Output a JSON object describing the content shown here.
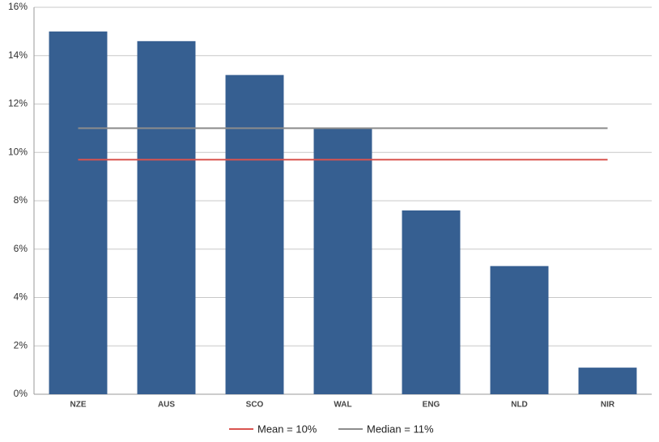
{
  "chart_data": {
    "type": "bar",
    "categories": [
      "NZE",
      "AUS",
      "SCO",
      "WAL",
      "ENG",
      "NLD",
      "NIR"
    ],
    "values": [
      15,
      14.6,
      13.2,
      11,
      7.6,
      5.3,
      1.1
    ],
    "color": "#365f91",
    "ylim": [
      0,
      16
    ],
    "yticks": [
      {
        "value": 0,
        "label": "0%"
      },
      {
        "value": 2,
        "label": "2%"
      },
      {
        "value": 4,
        "label": "4%"
      },
      {
        "value": 6,
        "label": "6%"
      },
      {
        "value": 8,
        "label": "8%"
      },
      {
        "value": 10,
        "label": "10%"
      },
      {
        "value": 12,
        "label": "12%"
      },
      {
        "value": 14,
        "label": "14%"
      },
      {
        "value": 16,
        "label": "16%"
      }
    ],
    "grid": true,
    "reference_lines": [
      {
        "name": "Mean = 10%",
        "value": 9.7,
        "color": "#d9534f"
      },
      {
        "name": "Median = 11%",
        "value": 11,
        "color": "#8c8c8c"
      }
    ],
    "legend": "bottom"
  }
}
